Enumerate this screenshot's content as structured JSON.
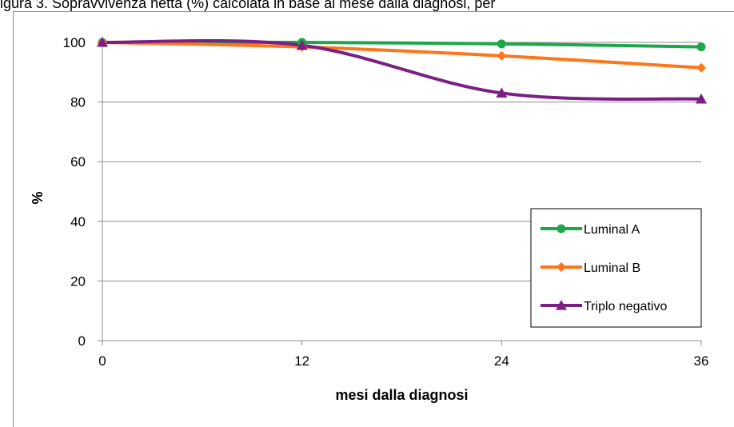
{
  "caption": "igura 3. Sopravvivenza netta (%) calcolata in base al mese dalla diagnosi, per",
  "chart_data": {
    "type": "line",
    "x": [
      0,
      12,
      24,
      36
    ],
    "series": [
      {
        "name": "Luminal A",
        "values": [
          100,
          100,
          99.5,
          98.5
        ],
        "color": "#1ea64a",
        "marker": "circle"
      },
      {
        "name": "Luminal B",
        "values": [
          100,
          98.5,
          95.5,
          91.5
        ],
        "color": "#ff7519",
        "marker": "diamond"
      },
      {
        "name": "Triplo negativo",
        "values": [
          100,
          99,
          83,
          81
        ],
        "color": "#7b1f82",
        "marker": "triangle"
      }
    ],
    "xlabel": "mesi dalla diagnosi",
    "ylabel": "%",
    "xlim": [
      0,
      36
    ],
    "ylim": [
      0,
      100
    ],
    "xticks": [
      0,
      12,
      24,
      36
    ],
    "yticks": [
      0,
      20,
      40,
      60,
      80,
      100
    ],
    "grid": "horizontal",
    "legend": "bottom-right"
  }
}
